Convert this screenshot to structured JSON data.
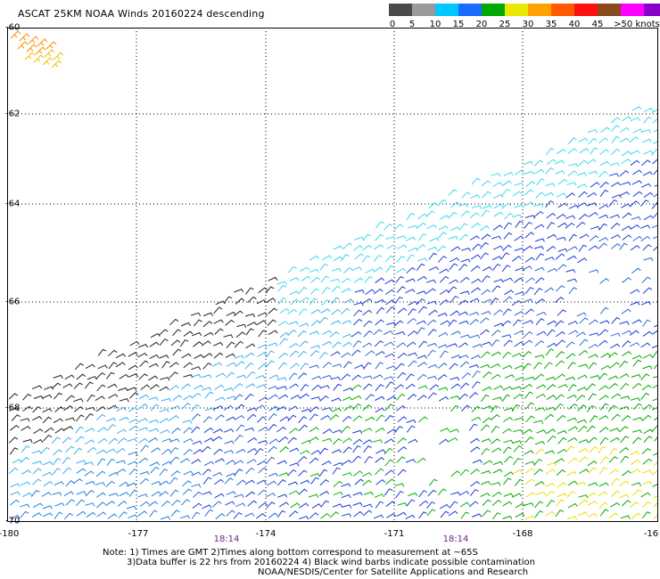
{
  "title": "ASCAT 25KM NOAA Winds 20160224 descending",
  "legend": {
    "colors": [
      "#4a4a4a",
      "#9a9a9a",
      "#00c8ff",
      "#1a6cff",
      "#00aa00",
      "#e8e800",
      "#ffa200",
      "#ff5a00",
      "#ff1010",
      "#8a4a1e",
      "#ff00ff",
      "#8a00c8",
      "#1a0080"
    ],
    "labels": [
      "0",
      "5",
      "10",
      "15",
      "20",
      "25",
      "30",
      "35",
      "40",
      "45",
      ">50 knots"
    ]
  },
  "lat_labels": [
    "-62",
    "-64",
    "-66",
    "-68",
    "-70"
  ],
  "lat_top_label": "-60",
  "lon_labels": [
    "-180",
    "-177",
    "-174",
    "-171",
    "-168",
    "-16"
  ],
  "pass_times": [
    "18:14",
    "18:14"
  ],
  "notes": [
    "Note: 1) Times are GMT 2)Times along bottom correspond to measurement at ~65S",
    "3)Data buffer is 22 hrs from 20160224 4) Black wind barbs indicate possible contamination",
    "NOAA/NESDIS/Center for Satellite Applications and Research"
  ]
}
